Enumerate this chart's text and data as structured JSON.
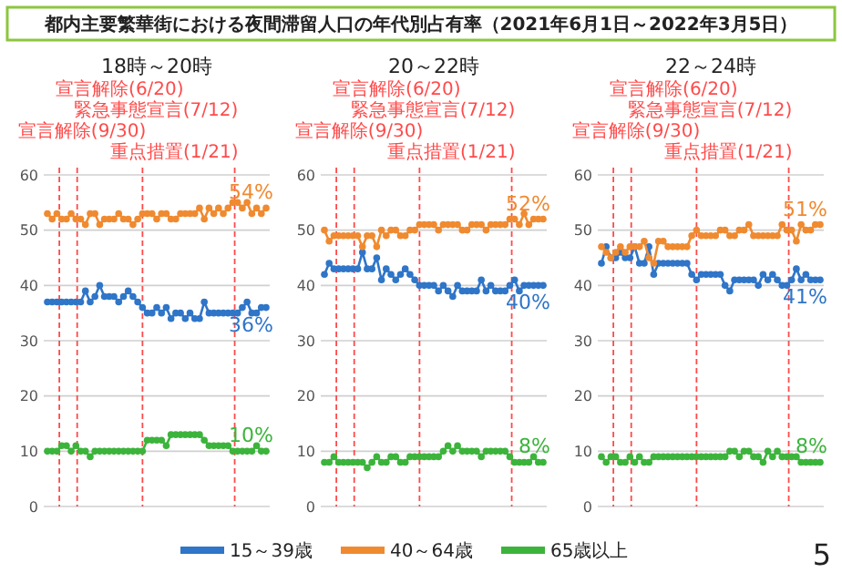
{
  "chart_data": [
    {
      "type": "line",
      "title": "都内主要繁華街における夜間滞留人口の年代別占有率（2021年6月1日～2022年3月5日）",
      "subtitle": "18時～20時",
      "categories": [
        null,
        null,
        null,
        null,
        null,
        null,
        null,
        null,
        null,
        null,
        null,
        null,
        null,
        null,
        null,
        null,
        null,
        null,
        null,
        null,
        null,
        null,
        null,
        null,
        null,
        null,
        null,
        null,
        null,
        null,
        null,
        null,
        null,
        null,
        null,
        null,
        null,
        null,
        null,
        null,
        null,
        null,
        null,
        null,
        null,
        null,
        null
      ],
      "ylim": [
        0,
        60
      ],
      "yticks": [
        0,
        10,
        20,
        30,
        40,
        50,
        60
      ],
      "grid": "y",
      "tick_labels": "y",
      "marker": "circle",
      "series": [
        {
          "color": "#2f75c8",
          "values": [
            37,
            37,
            37,
            37,
            37,
            37,
            37,
            37,
            39,
            37,
            38,
            40,
            38,
            38,
            38,
            37,
            38,
            39,
            38,
            37,
            36,
            35,
            35,
            36,
            35,
            36,
            34,
            35,
            35,
            34,
            35,
            34,
            34,
            37,
            35,
            35,
            35,
            35,
            35,
            35,
            35,
            36,
            37,
            35,
            35,
            36,
            36
          ]
        },
        {
          "color": "#f08a30",
          "values": [
            53,
            52,
            53,
            52,
            52,
            53,
            52,
            52,
            51,
            53,
            53,
            51,
            52,
            52,
            52,
            53,
            52,
            52,
            51,
            52,
            53,
            53,
            53,
            52,
            53,
            53,
            52,
            52,
            53,
            53,
            53,
            53,
            54,
            52,
            54,
            53,
            54,
            53,
            54,
            55,
            55,
            54,
            55,
            53,
            54,
            53,
            54
          ]
        },
        {
          "color": "#3cb43c",
          "values": [
            10,
            10,
            10,
            11,
            11,
            10,
            11,
            10,
            10,
            9,
            10,
            10,
            10,
            10,
            10,
            10,
            10,
            10,
            10,
            10,
            10,
            12,
            12,
            12,
            12,
            11,
            13,
            13,
            13,
            13,
            13,
            13,
            13,
            12,
            11,
            11,
            11,
            11,
            11,
            10,
            10,
            10,
            10,
            10,
            11,
            10,
            10
          ]
        }
      ],
      "annotations": [
        {
          "text": "36%",
          "y": 36
        },
        {
          "text": "54%",
          "y": 54
        },
        {
          "text": "10%",
          "y": 10
        },
        "宣言解除(6/20)",
        "緊急事態宣言(7/12)",
        "宣言解除(9/30)",
        "重点措置(1/21)"
      ]
    },
    {
      "type": "line",
      "title": "20～22時",
      "categories": [
        null,
        null,
        null,
        null,
        null,
        null,
        null,
        null,
        null,
        null,
        null,
        null,
        null,
        null,
        null,
        null,
        null,
        null,
        null,
        null,
        null,
        null,
        null,
        null,
        null,
        null,
        null,
        null,
        null,
        null,
        null,
        null,
        null,
        null,
        null,
        null,
        null,
        null,
        null,
        null,
        null,
        null,
        null,
        null,
        null,
        null,
        null
      ],
      "ylim": [
        0,
        60
      ],
      "yticks": [
        0,
        10,
        20,
        30,
        40,
        50,
        60
      ],
      "grid": "y",
      "tick_labels": "y",
      "marker": "circle",
      "legend": "bottom",
      "series": [
        {
          "name": "15～39歳",
          "color": "#2f75c8",
          "values": [
            42,
            44,
            43,
            43,
            43,
            43,
            43,
            43,
            46,
            43,
            43,
            45,
            41,
            43,
            42,
            41,
            42,
            43,
            42,
            41,
            40,
            40,
            40,
            40,
            39,
            40,
            39,
            38,
            40,
            39,
            39,
            39,
            39,
            41,
            39,
            40,
            39,
            39,
            39,
            40,
            41,
            39,
            40,
            40,
            40,
            40,
            40
          ]
        },
        {
          "name": "40～64歳",
          "color": "#f08a30",
          "values": [
            50,
            48,
            49,
            49,
            49,
            49,
            49,
            49,
            47,
            49,
            49,
            47,
            50,
            49,
            50,
            50,
            49,
            49,
            50,
            50,
            51,
            51,
            51,
            51,
            50,
            51,
            51,
            51,
            51,
            50,
            50,
            51,
            51,
            51,
            50,
            51,
            51,
            51,
            51,
            52,
            52,
            51,
            53,
            51,
            52,
            52,
            52
          ]
        },
        {
          "name": "65歳以上",
          "color": "#3cb43c",
          "values": [
            8,
            8,
            9,
            8,
            8,
            8,
            8,
            8,
            8,
            7,
            8,
            9,
            8,
            8,
            9,
            9,
            8,
            8,
            9,
            9,
            9,
            9,
            9,
            9,
            9,
            10,
            11,
            10,
            11,
            10,
            10,
            10,
            10,
            9,
            10,
            10,
            10,
            10,
            10,
            9,
            8,
            8,
            8,
            8,
            9,
            8,
            8
          ]
        }
      ],
      "annotations": [
        {
          "text": "40%",
          "y": 40
        },
        {
          "text": "52%",
          "y": 52
        },
        {
          "text": "8%",
          "y": 8
        },
        "宣言解除(6/20)",
        "緊急事態宣言(7/12)",
        "宣言解除(9/30)",
        "重点措置(1/21)"
      ]
    },
    {
      "type": "line",
      "title": "22～24時",
      "categories": [
        null,
        null,
        null,
        null,
        null,
        null,
        null,
        null,
        null,
        null,
        null,
        null,
        null,
        null,
        null,
        null,
        null,
        null,
        null,
        null,
        null,
        null,
        null,
        null,
        null,
        null,
        null,
        null,
        null,
        null,
        null,
        null,
        null,
        null,
        null,
        null,
        null,
        null,
        null,
        null,
        null,
        null,
        null,
        null,
        null,
        null,
        null
      ],
      "ylim": [
        0,
        60
      ],
      "yticks": [
        0,
        10,
        20,
        30,
        40,
        50,
        60
      ],
      "grid": "y",
      "tick_labels": "y",
      "marker": "circle",
      "series": [
        {
          "color": "#2f75c8",
          "values": [
            44,
            47,
            45,
            45,
            46,
            45,
            45,
            47,
            44,
            44,
            47,
            42,
            44,
            44,
            44,
            44,
            44,
            44,
            44,
            42,
            41,
            42,
            42,
            42,
            42,
            42,
            40,
            39,
            41,
            41,
            41,
            41,
            41,
            40,
            42,
            41,
            42,
            41,
            40,
            40,
            41,
            43,
            41,
            42,
            41,
            41,
            41
          ]
        },
        {
          "color": "#f08a30",
          "values": [
            47,
            46,
            45,
            46,
            47,
            46,
            47,
            47,
            47,
            48,
            45,
            44,
            48,
            48,
            47,
            47,
            47,
            47,
            47,
            49,
            50,
            49,
            49,
            49,
            49,
            50,
            50,
            49,
            49,
            50,
            50,
            51,
            49,
            49,
            49,
            49,
            49,
            49,
            51,
            50,
            50,
            48,
            51,
            50,
            50,
            51,
            51
          ]
        },
        {
          "color": "#3cb43c",
          "values": [
            9,
            8,
            9,
            9,
            8,
            8,
            9,
            8,
            9,
            8,
            8,
            9,
            9,
            9,
            9,
            9,
            9,
            9,
            9,
            9,
            9,
            9,
            9,
            9,
            9,
            9,
            9,
            10,
            10,
            9,
            10,
            10,
            9,
            9,
            8,
            10,
            9,
            10,
            9,
            9,
            9,
            9,
            8,
            8,
            8,
            8,
            8
          ]
        }
      ],
      "annotations": [
        {
          "text": "41%",
          "y": 41
        },
        {
          "text": "51%",
          "y": 51
        },
        {
          "text": "8%",
          "y": 8
        },
        "宣言解除(6/20)",
        "緊急事態宣言(7/12)",
        "宣言解除(9/30)",
        "重点措置(1/21)",
        "5"
      ]
    }
  ]
}
